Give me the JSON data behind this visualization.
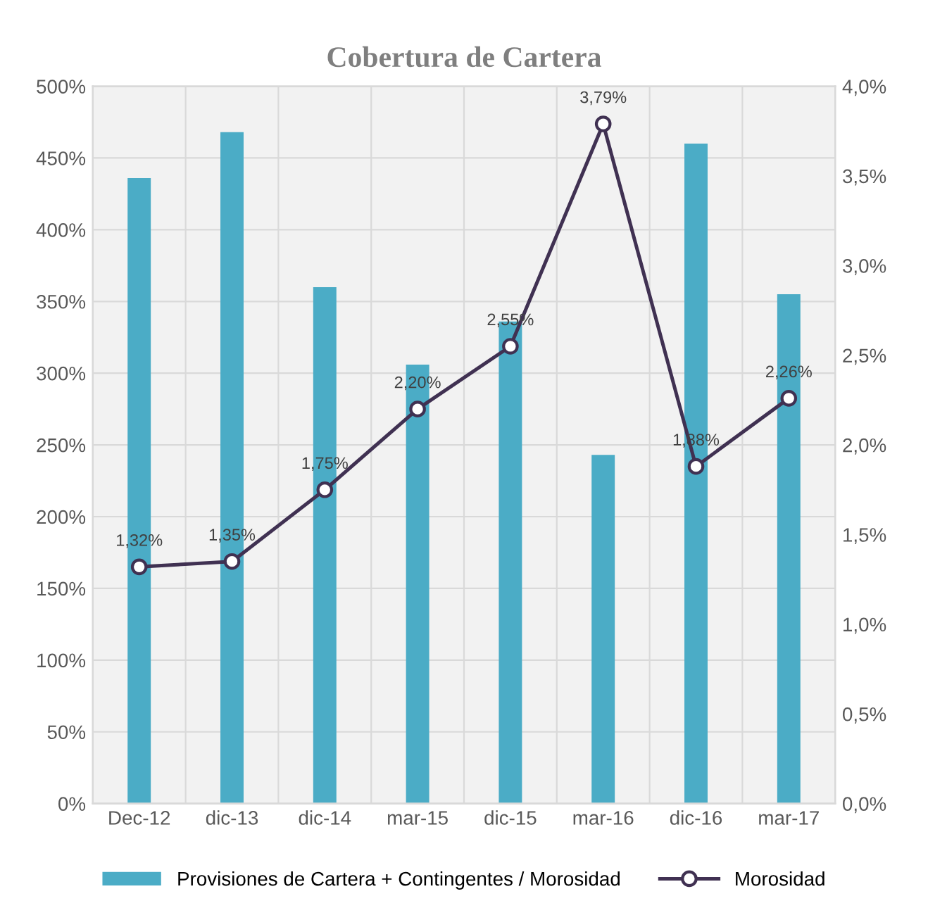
{
  "chart_data": {
    "type": "bar",
    "title": "Cobertura de Cartera",
    "categories": [
      "Dec-12",
      "dic-13",
      "dic-14",
      "mar-15",
      "dic-15",
      "mar-16",
      "dic-16",
      "mar-17"
    ],
    "series": [
      {
        "name": "Provisiones de Cartera + Contingentes / Morosidad",
        "color": "#4bacc6",
        "values": [
          436,
          468,
          360,
          306,
          336,
          243,
          460,
          355
        ]
      },
      {
        "name": "Morosidad",
        "type": "line",
        "axis": "y2",
        "color": "#403152",
        "marker": "circle",
        "line_style": "solid",
        "values": [
          1.32,
          1.35,
          1.75,
          2.2,
          2.55,
          3.79,
          1.88,
          2.26
        ],
        "value_labels": [
          "1,32%",
          "1,35%",
          "1,75%",
          "2,20%",
          "2,55%",
          "3,79%",
          "1,88%",
          "2,26%"
        ]
      }
    ],
    "ylim": [
      0,
      500
    ],
    "yticks": [
      {
        "value": 0,
        "label": "0%"
      },
      {
        "value": 50,
        "label": "50%"
      },
      {
        "value": 100,
        "label": "100%"
      },
      {
        "value": 150,
        "label": "150%"
      },
      {
        "value": 200,
        "label": "200%"
      },
      {
        "value": 250,
        "label": "250%"
      },
      {
        "value": 300,
        "label": "300%"
      },
      {
        "value": 350,
        "label": "350%"
      },
      {
        "value": 400,
        "label": "400%"
      },
      {
        "value": 450,
        "label": "450%"
      },
      {
        "value": 500,
        "label": "500%"
      }
    ],
    "y2lim": [
      0,
      4
    ],
    "y2ticks": [
      {
        "value": 0,
        "label": "0,0%"
      },
      {
        "value": 0.5,
        "label": "0,5%"
      },
      {
        "value": 1,
        "label": "1,0%"
      },
      {
        "value": 1.5,
        "label": "1,5%"
      },
      {
        "value": 2,
        "label": "2,0%"
      },
      {
        "value": 2.5,
        "label": "2,5%"
      },
      {
        "value": 3,
        "label": "3,0%"
      },
      {
        "value": 3.5,
        "label": "3,5%"
      },
      {
        "value": 4,
        "label": "4,0%"
      }
    ],
    "grid": true,
    "legend": "bottom"
  }
}
